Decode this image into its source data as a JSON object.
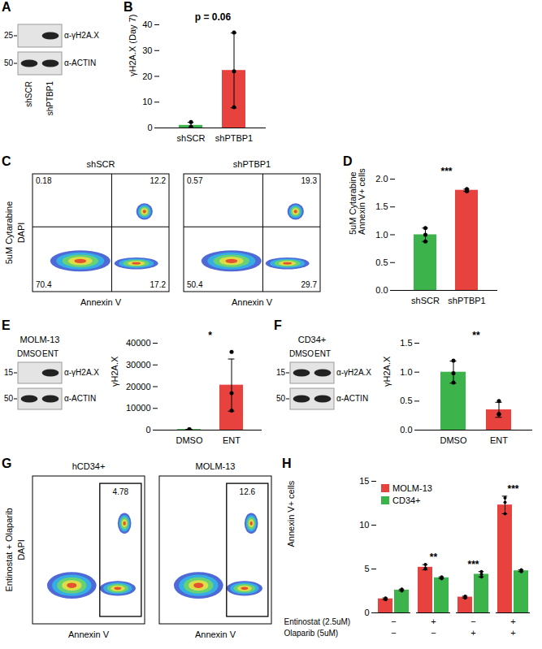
{
  "chart_data": [
    {
      "type": "bar",
      "panel": "B",
      "y_label": [
        "γH2A.X (Day 7)"
      ],
      "categories": [
        "shSCR",
        "shPTBP1"
      ],
      "values": [
        1.0,
        22.3
      ],
      "errors": [
        1.15,
        14.5
      ],
      "points": [
        [
          0.2,
          0.5,
          2.3
        ],
        [
          37,
          22,
          8
        ]
      ],
      "colors": [
        "#3cb44b",
        "#e8423f"
      ],
      "ylim": [
        0,
        40
      ],
      "yticks": [
        0,
        10,
        20,
        30,
        40
      ],
      "annotation": "p = 0.06"
    },
    {
      "type": "bar",
      "panel": "D",
      "y_label": [
        "5uM Cytarabine",
        "Annexin V+ cells"
      ],
      "categories": [
        "shSCR",
        "shPTBP1"
      ],
      "values": [
        1.0,
        1.8
      ],
      "errors": [
        0.12,
        0.02
      ],
      "points": [
        [
          1.12,
          0.88,
          1.0
        ],
        [
          1.78,
          1.8,
          1.82
        ]
      ],
      "colors": [
        "#3cb44b",
        "#e8423f"
      ],
      "ylim": [
        0,
        2
      ],
      "yticks": [
        {
          "value": 0,
          "label": "0.0"
        },
        0.5,
        {
          "value": 1,
          "label": "1.0"
        },
        1.5,
        {
          "value": 2,
          "label": "2.0"
        }
      ],
      "annotation": "***"
    },
    {
      "type": "bar",
      "panel": "E",
      "y_label": [
        "γH2A.X"
      ],
      "categories": [
        "DMSO",
        "ENT"
      ],
      "values": [
        300,
        20700
      ],
      "errors": [
        50,
        12000
      ],
      "points": [
        [
          250,
          350,
          300
        ],
        [
          36000,
          17000,
          9000
        ]
      ],
      "colors": [
        "#3cb44b",
        "#e8423f"
      ],
      "ylim": [
        0,
        40000
      ],
      "yticks": [
        0,
        10000,
        20000,
        30000,
        40000
      ],
      "annotation": "*"
    },
    {
      "type": "bar",
      "panel": "F",
      "y_label": [
        "γH2A.X"
      ],
      "categories": [
        "DMSO",
        "ENT"
      ],
      "values": [
        1.0,
        0.35
      ],
      "errors": [
        0.19,
        0.13
      ],
      "points": [
        [
          1.2,
          0.98,
          0.82
        ],
        [
          0.5,
          0.28,
          0.27
        ]
      ],
      "colors": [
        "#3cb44b",
        "#e8423f"
      ],
      "ylim": [
        0,
        1.5
      ],
      "yticks": [
        {
          "value": 0,
          "label": "0.0"
        },
        0.5,
        {
          "value": 1,
          "label": "1.0"
        },
        1.5
      ],
      "annotation": "**"
    },
    {
      "type": "bar",
      "panel": "H",
      "y_label": [
        "Annexin V+ cells"
      ],
      "series": [
        {
          "name": "MOLM-13",
          "color": "#e8423f",
          "values": [
            1.6,
            5.2,
            1.8,
            12.3
          ],
          "errors": [
            0.1,
            0.3,
            0.1,
            1.0
          ],
          "points": [
            [
              1.5,
              1.6,
              1.7
            ],
            [
              5.0,
              5.1,
              5.5
            ],
            [
              1.7,
              1.8,
              1.9
            ],
            [
              11.3,
              12.6,
              13.1
            ]
          ]
        },
        {
          "name": "CD34+",
          "color": "#3cb44b",
          "values": [
            2.6,
            4.0,
            4.4,
            4.8
          ],
          "errors": [
            0.1,
            0.1,
            0.3,
            0.1
          ],
          "points": [
            [
              2.5,
              2.6,
              2.7
            ],
            [
              3.9,
              4.0,
              4.1
            ],
            [
              4.1,
              4.4,
              4.7
            ],
            [
              4.7,
              4.8,
              4.9
            ]
          ]
        }
      ],
      "annotations": [
        null,
        "**",
        "***",
        "***"
      ],
      "treatments": [
        {
          "name": "Entinostat (2.5uM)",
          "levels": [
            "−",
            "+",
            "−",
            "+"
          ]
        },
        {
          "name": "Olaparib (5uM)",
          "levels": [
            "−",
            "−",
            "+",
            "+"
          ]
        }
      ],
      "ylim": [
        0,
        15
      ],
      "yticks": [
        0,
        5,
        10,
        15
      ],
      "legend": "top-left"
    }
  ],
  "blots": [
    {
      "panel": "A",
      "markers": [
        25,
        50
      ],
      "lanes": [
        "shSCR",
        "shPTBP1"
      ],
      "bands": [
        {
          "name": "α-γH2A.X",
          "present": [
            false,
            true
          ]
        },
        {
          "name": "α-ACTIN",
          "present": [
            true,
            true
          ]
        }
      ]
    },
    {
      "panel": "E",
      "title": "MOLM-13",
      "markers": [
        15,
        50
      ],
      "lanes": [
        "DMSO",
        "ENT"
      ],
      "bands": [
        {
          "name": "α-γH2A.X",
          "present": [
            false,
            true
          ]
        },
        {
          "name": "α-ACTIN",
          "present": [
            true,
            true
          ]
        }
      ]
    },
    {
      "panel": "F",
      "title": "CD34+",
      "markers": [
        15,
        50
      ],
      "lanes": [
        "DMSO",
        "ENT"
      ],
      "bands": [
        {
          "name": "α-γH2A.X",
          "present": [
            true,
            true
          ]
        },
        {
          "name": "α-ACTIN",
          "present": [
            true,
            true
          ]
        }
      ]
    }
  ],
  "flow": [
    {
      "panel": "C",
      "y_label": [
        "5uM Cytarabine",
        "DAPI"
      ],
      "x_label": "Annexin V",
      "plots": [
        {
          "title": "shSCR",
          "quadrants": {
            "upper_left": 0.18,
            "upper_right": 12.2,
            "lower_left": 70.4,
            "lower_right": 17.2
          }
        },
        {
          "title": "shPTBP1",
          "quadrants": {
            "upper_left": 0.57,
            "upper_right": 19.3,
            "lower_left": 50.4,
            "lower_right": 29.7
          }
        }
      ]
    },
    {
      "panel": "G",
      "y_label": [
        "Entinostat + Olaparib",
        "DAPI"
      ],
      "x_label": "Annexin V",
      "plots": [
        {
          "title": "hCD34+",
          "gate": 4.78
        },
        {
          "title": "MOLM-13",
          "gate": 12.6
        }
      ]
    }
  ]
}
